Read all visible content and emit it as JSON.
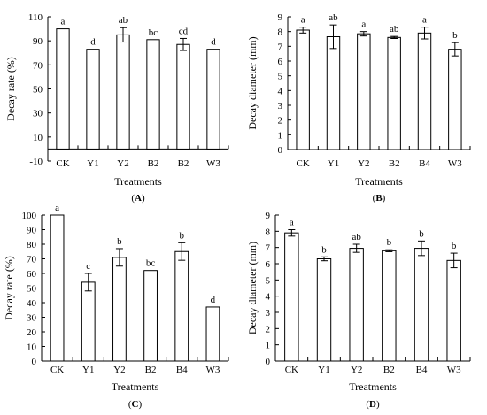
{
  "chart_data": [
    {
      "panel": "(A)",
      "type": "bar",
      "xlabel": "Treatments",
      "ylabel": "Decay rate (%)",
      "ylim": [
        -10,
        110
      ],
      "yticks": [
        -10,
        10,
        30,
        50,
        70,
        90,
        110
      ],
      "categories": [
        "CK",
        "Y1",
        "Y2",
        "B2",
        "B2",
        "W3"
      ],
      "values": [
        100,
        83,
        95,
        91,
        87,
        83
      ],
      "errors": [
        0,
        0,
        6,
        0,
        5,
        0
      ],
      "significance": [
        "a",
        "d",
        "ab",
        "bc",
        "cd",
        "d"
      ]
    },
    {
      "panel": "(B)",
      "type": "bar",
      "xlabel": "Treatments",
      "ylabel": "Decay diameter (mm)",
      "ylim": [
        0,
        9
      ],
      "yticks": [
        0,
        1,
        2,
        3,
        4,
        5,
        6,
        7,
        8,
        9
      ],
      "categories": [
        "CK",
        "Y1",
        "Y2",
        "B2",
        "B4",
        "W3"
      ],
      "values": [
        8.1,
        7.65,
        7.85,
        7.6,
        7.9,
        6.8
      ],
      "errors": [
        0.2,
        0.8,
        0.15,
        0.07,
        0.4,
        0.45
      ],
      "significance": [
        "a",
        "ab",
        "a",
        "ab",
        "a",
        "b"
      ]
    },
    {
      "panel": "(C)",
      "type": "bar",
      "xlabel": "Treatments",
      "ylabel": "Decay rate (%)",
      "ylim": [
        0,
        100
      ],
      "yticks": [
        0,
        10,
        20,
        30,
        40,
        50,
        60,
        70,
        80,
        90,
        100
      ],
      "categories": [
        "CK",
        "Y1",
        "Y2",
        "B2",
        "B4",
        "W3"
      ],
      "values": [
        100,
        54,
        71,
        62,
        75,
        37
      ],
      "errors": [
        0,
        6,
        6,
        0,
        6,
        0
      ],
      "significance": [
        "a",
        "c",
        "b",
        "bc",
        "b",
        "d"
      ]
    },
    {
      "panel": "(D)",
      "type": "bar",
      "xlabel": "Treatments",
      "ylabel": "Decay diameter (mm)",
      "ylim": [
        0,
        9
      ],
      "yticks": [
        0,
        1,
        2,
        3,
        4,
        5,
        6,
        7,
        8,
        9
      ],
      "categories": [
        "CK",
        "Y1",
        "Y2",
        "B2",
        "B4",
        "W3"
      ],
      "values": [
        7.9,
        6.3,
        6.95,
        6.8,
        6.95,
        6.2
      ],
      "errors": [
        0.2,
        0.12,
        0.25,
        0.06,
        0.45,
        0.45
      ],
      "significance": [
        "a",
        "b",
        "ab",
        "b",
        "b",
        "b"
      ]
    }
  ]
}
